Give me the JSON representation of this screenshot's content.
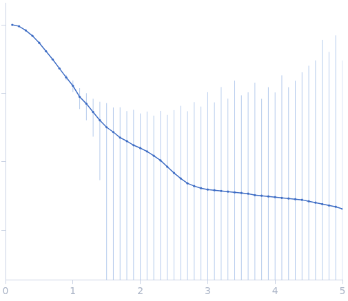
{
  "chart_data": {
    "type": "scatter",
    "log": "y",
    "grid": false,
    "tick_labels": "x",
    "marker": "circle",
    "color": "#3d6cc4",
    "xlim": [
      0,
      5
    ],
    "xticks": [
      0,
      1,
      2,
      3,
      4,
      5
    ],
    "ylim": [
      0.00019,
      2.1
    ],
    "yticks": [
      0.001,
      0.01,
      0.1,
      1
    ],
    "x": [
      0.1,
      0.2,
      0.3,
      0.4,
      0.5,
      0.6,
      0.7,
      0.8,
      0.9,
      1.0,
      1.1,
      1.2,
      1.3,
      1.4,
      1.5,
      1.6,
      1.7,
      1.8,
      1.9,
      2.0,
      2.1,
      2.2,
      2.3,
      2.4,
      2.5,
      2.6,
      2.7,
      2.8,
      2.9,
      3.0,
      3.1,
      3.2,
      3.3,
      3.4,
      3.5,
      3.6,
      3.7,
      3.8,
      3.9,
      4.0,
      4.1,
      4.2,
      4.3,
      4.4,
      4.5,
      4.6,
      4.7,
      4.8,
      4.9,
      5.0
    ],
    "values": [
      1.0,
      0.954,
      0.83,
      0.69,
      0.546,
      0.413,
      0.313,
      0.231,
      0.171,
      0.129,
      0.089,
      0.0705,
      0.0533,
      0.0404,
      0.032,
      0.0272,
      0.0226,
      0.0201,
      0.0175,
      0.0159,
      0.0142,
      0.0123,
      0.0105,
      0.00849,
      0.00689,
      0.00573,
      0.00486,
      0.00443,
      0.00413,
      0.00394,
      0.00385,
      0.00376,
      0.00368,
      0.00359,
      0.00351,
      0.00343,
      0.00327,
      0.0032,
      0.00313,
      0.00306,
      0.00298,
      0.00292,
      0.00285,
      0.00279,
      0.00266,
      0.00254,
      0.00242,
      0.00231,
      0.00221,
      0.00206
    ],
    "errors": [
      0.002,
      0.002,
      0.002,
      0.003,
      0.003,
      0.004,
      0.005,
      0.008,
      0.015,
      0.025,
      0.03,
      0.03,
      0.03,
      0.035,
      0.04,
      0.035,
      0.04,
      0.035,
      0.04,
      0.035,
      0.04,
      0.035,
      0.045,
      0.04,
      0.05,
      0.06,
      0.05,
      0.07,
      0.06,
      0.1,
      0.07,
      0.12,
      0.08,
      0.15,
      0.09,
      0.1,
      0.14,
      0.08,
      0.12,
      0.1,
      0.18,
      0.12,
      0.15,
      0.2,
      0.25,
      0.3,
      0.6,
      0.4,
      0.7,
      0.3
    ]
  }
}
